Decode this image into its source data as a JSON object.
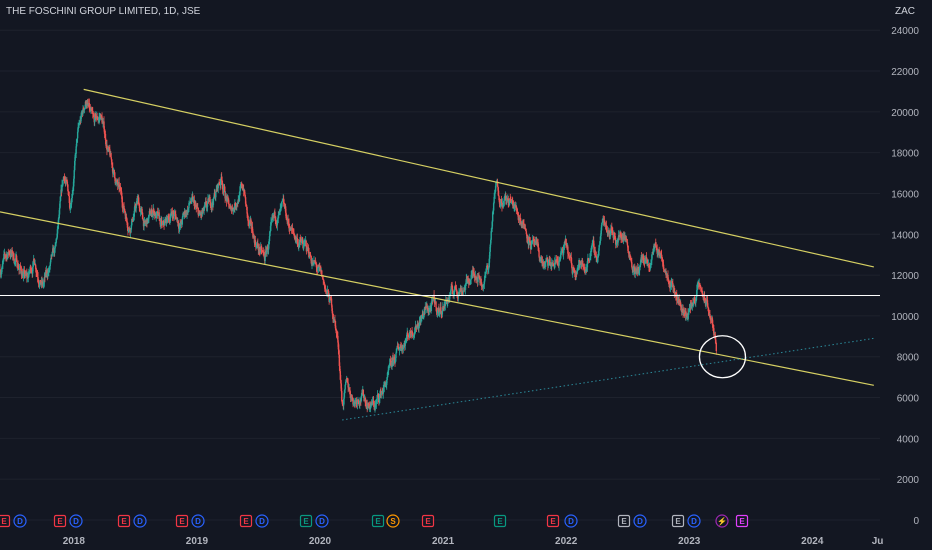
{
  "title": "THE FOSCHINI GROUP LIMITED, 1D, JSE",
  "currency": "ZAC",
  "colors": {
    "background": "#131722",
    "up": "#26a69a",
    "down": "#ef5350",
    "channel": "#d6d063",
    "level": "#ffffff",
    "dotted": "#2b8a9a",
    "circle": "#ffffff",
    "event_red": "#f23645",
    "event_blue": "#2962ff",
    "event_green": "#089981",
    "event_orange": "#ff9800",
    "event_gray": "#b2b5be",
    "event_purple": "#9c27b0",
    "event_magenta": "#e040fb"
  },
  "chart_data": {
    "type": "candlestick",
    "y_ticks": [
      "24000",
      "22000",
      "20000",
      "18000",
      "16000",
      "14000",
      "12000",
      "10000",
      "8000",
      "6000",
      "4000",
      "2000",
      "0"
    ],
    "x_ticks": [
      "2018",
      "2019",
      "2020",
      "2021",
      "2022",
      "2023",
      "2024",
      "Ju"
    ],
    "ylim": [
      0,
      24500
    ],
    "xlim": [
      2017.4,
      2024.55
    ],
    "price_path": [
      [
        2017.4,
        12300
      ],
      [
        2017.48,
        13200
      ],
      [
        2017.55,
        12500
      ],
      [
        2017.62,
        11700
      ],
      [
        2017.68,
        12800
      ],
      [
        2017.75,
        11500
      ],
      [
        2017.85,
        13000
      ],
      [
        2017.92,
        16800
      ],
      [
        2017.97,
        15500
      ],
      [
        2018.03,
        18800
      ],
      [
        2018.1,
        20600
      ],
      [
        2018.16,
        19200
      ],
      [
        2018.22,
        19800
      ],
      [
        2018.3,
        17500
      ],
      [
        2018.38,
        15800
      ],
      [
        2018.45,
        14500
      ],
      [
        2018.52,
        15600
      ],
      [
        2018.58,
        14300
      ],
      [
        2018.65,
        15200
      ],
      [
        2018.72,
        14100
      ],
      [
        2018.8,
        15100
      ],
      [
        2018.87,
        14500
      ],
      [
        2018.95,
        15600
      ],
      [
        2019.02,
        14700
      ],
      [
        2019.08,
        15000
      ],
      [
        2019.15,
        16000
      ],
      [
        2019.2,
        16800
      ],
      [
        2019.27,
        15000
      ],
      [
        2019.33,
        15900
      ],
      [
        2019.38,
        16300
      ],
      [
        2019.42,
        14300
      ],
      [
        2019.48,
        13600
      ],
      [
        2019.55,
        12700
      ],
      [
        2019.6,
        13900
      ],
      [
        2019.65,
        14800
      ],
      [
        2019.7,
        15000
      ],
      [
        2019.78,
        14000
      ],
      [
        2019.85,
        13500
      ],
      [
        2019.92,
        13000
      ],
      [
        2019.97,
        12300
      ],
      [
        2020.03,
        11500
      ],
      [
        2020.08,
        10700
      ],
      [
        2020.12,
        9800
      ],
      [
        2020.15,
        8500
      ],
      [
        2020.18,
        5800
      ],
      [
        2020.22,
        6500
      ],
      [
        2020.28,
        5900
      ],
      [
        2020.33,
        6300
      ],
      [
        2020.4,
        5700
      ],
      [
        2020.45,
        5600
      ],
      [
        2020.52,
        6500
      ],
      [
        2020.58,
        7300
      ],
      [
        2020.65,
        8500
      ],
      [
        2020.72,
        9200
      ],
      [
        2020.78,
        9700
      ],
      [
        2020.85,
        10200
      ],
      [
        2020.92,
        10500
      ],
      [
        2020.97,
        10200
      ],
      [
        2021.03,
        10800
      ],
      [
        2021.1,
        11300
      ],
      [
        2021.17,
        11500
      ],
      [
        2021.22,
        11800
      ],
      [
        2021.27,
        12300
      ],
      [
        2021.32,
        11700
      ],
      [
        2021.37,
        12400
      ],
      [
        2021.4,
        14800
      ],
      [
        2021.43,
        16300
      ],
      [
        2021.47,
        15900
      ],
      [
        2021.52,
        15600
      ],
      [
        2021.58,
        15300
      ],
      [
        2021.65,
        14700
      ],
      [
        2021.72,
        13600
      ],
      [
        2021.78,
        12800
      ],
      [
        2021.85,
        12300
      ],
      [
        2021.92,
        12600
      ],
      [
        2022.0,
        13300
      ],
      [
        2022.05,
        12100
      ],
      [
        2022.1,
        12700
      ],
      [
        2022.15,
        12200
      ],
      [
        2022.2,
        13400
      ],
      [
        2022.25,
        12800
      ],
      [
        2022.3,
        14700
      ],
      [
        2022.35,
        14400
      ],
      [
        2022.42,
        13800
      ],
      [
        2022.47,
        14100
      ],
      [
        2022.52,
        13200
      ],
      [
        2022.57,
        12000
      ],
      [
        2022.62,
        12800
      ],
      [
        2022.67,
        12100
      ],
      [
        2022.72,
        13500
      ],
      [
        2022.77,
        12800
      ],
      [
        2022.82,
        12400
      ],
      [
        2022.86,
        11900
      ],
      [
        2022.9,
        11000
      ],
      [
        2022.94,
        10400
      ],
      [
        2022.98,
        10100
      ],
      [
        2023.03,
        10600
      ],
      [
        2023.07,
        11400
      ],
      [
        2023.11,
        11000
      ],
      [
        2023.15,
        10400
      ],
      [
        2023.19,
        9500
      ],
      [
        2023.22,
        8300
      ]
    ],
    "upper_channel": [
      [
        2018.08,
        21100
      ],
      [
        2024.5,
        12400
      ]
    ],
    "lower_channel": [
      [
        2017.4,
        15100
      ],
      [
        2024.5,
        6600
      ]
    ],
    "support_level": 11000,
    "dotted_trend": [
      [
        2020.18,
        4900
      ],
      [
        2024.5,
        8900
      ]
    ],
    "highlight_circle": [
      2023.27,
      8000
    ]
  },
  "events": [
    {
      "label": "E",
      "kind": "earnings",
      "color": "red"
    },
    {
      "label": "D",
      "kind": "dividend",
      "color": "blue"
    },
    {
      "label": "E",
      "kind": "earnings",
      "color": "red"
    },
    {
      "label": "D",
      "kind": "dividend",
      "color": "blue"
    },
    {
      "label": "E",
      "kind": "earnings",
      "color": "red"
    },
    {
      "label": "D",
      "kind": "dividend",
      "color": "blue"
    },
    {
      "label": "E",
      "kind": "earnings",
      "color": "red"
    },
    {
      "label": "D",
      "kind": "dividend",
      "color": "blue"
    },
    {
      "label": "E",
      "kind": "earnings",
      "color": "red"
    },
    {
      "label": "D",
      "kind": "dividend",
      "color": "blue"
    },
    {
      "label": "E",
      "kind": "earnings",
      "color": "green"
    },
    {
      "label": "D",
      "kind": "dividend",
      "color": "blue"
    },
    {
      "label": "E",
      "kind": "earnings",
      "color": "green"
    },
    {
      "label": "S",
      "kind": "split",
      "color": "orange"
    },
    {
      "label": "E",
      "kind": "earnings",
      "color": "red"
    },
    {
      "label": "E",
      "kind": "earnings",
      "color": "green"
    },
    {
      "label": "E",
      "kind": "earnings",
      "color": "red"
    },
    {
      "label": "D",
      "kind": "dividend",
      "color": "blue"
    },
    {
      "label": "E",
      "kind": "earnings",
      "color": "gray"
    },
    {
      "label": "D",
      "kind": "dividend",
      "color": "blue"
    },
    {
      "label": "E",
      "kind": "earnings",
      "color": "gray"
    },
    {
      "label": "D",
      "kind": "dividend",
      "color": "blue"
    },
    {
      "label": "⚡",
      "kind": "news",
      "color": "purple"
    },
    {
      "label": "E",
      "kind": "earnings",
      "color": "magenta"
    }
  ]
}
